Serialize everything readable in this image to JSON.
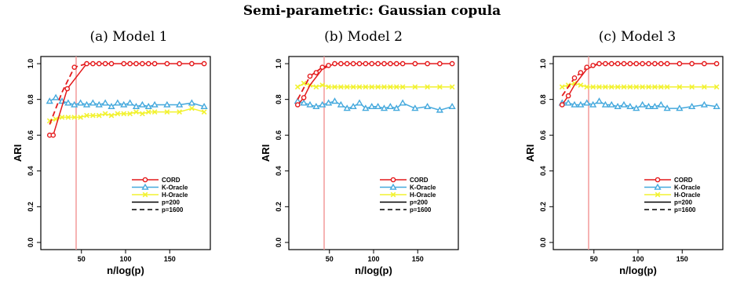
{
  "figure_title": "Semi-parametric: Gaussian copula",
  "colors": {
    "CORD": "#e41a1c",
    "K-Oracle": "#45a9dd",
    "H-Oracle": "#f2f230",
    "vline": "#f4a0a0"
  },
  "chart_data": [
    {
      "type": "line",
      "title": "(a) Model 1",
      "xlabel": "n/log(p)",
      "ylabel": "ARI",
      "xlim": [
        4,
        196
      ],
      "ylim": [
        -0.04,
        1.04
      ],
      "xticks": [
        50,
        100,
        150
      ],
      "yticks": [
        0.0,
        0.2,
        0.4,
        0.6,
        0.8,
        1.0
      ],
      "ytick_labels": [
        "0.0",
        "0.2",
        "0.4",
        "0.6",
        "0.8",
        "1.0"
      ],
      "vline_x": 44,
      "legend_position": "bottom-right",
      "legend": [
        "CORD",
        "K-Oracle",
        "H-Oracle",
        "p=200",
        "p=1600"
      ],
      "series": [
        {
          "name": "CORD",
          "style": "markers",
          "marker": "circle",
          "x": [
            14,
            18,
            34,
            42,
            56,
            63,
            70,
            77,
            84,
            98,
            105,
            112,
            119,
            126,
            133,
            147,
            161,
            175,
            189
          ],
          "y": [
            0.6,
            0.6,
            0.86,
            0.98,
            1.0,
            1.0,
            1.0,
            1.0,
            1.0,
            1.0,
            1.0,
            1.0,
            1.0,
            1.0,
            1.0,
            1.0,
            1.0,
            1.0,
            1.0
          ]
        },
        {
          "name": "p=200",
          "style": "solid",
          "color": "CORD",
          "x": [
            18,
            34,
            56,
            63,
            189
          ],
          "y": [
            0.6,
            0.86,
            1.0,
            1.0,
            1.0
          ]
        },
        {
          "name": "p=1600",
          "style": "dashed",
          "color": "CORD",
          "x": [
            14,
            28,
            42,
            56
          ],
          "y": [
            0.66,
            0.84,
            0.98,
            1.0
          ]
        },
        {
          "name": "K-Oracle",
          "style": "solid",
          "marker": "triangle",
          "x": [
            14,
            21,
            28,
            35,
            42,
            49,
            56,
            63,
            70,
            77,
            84,
            91,
            98,
            105,
            112,
            119,
            126,
            133,
            147,
            161,
            175,
            189
          ],
          "y": [
            0.79,
            0.81,
            0.79,
            0.78,
            0.77,
            0.78,
            0.77,
            0.78,
            0.77,
            0.78,
            0.76,
            0.78,
            0.77,
            0.78,
            0.76,
            0.77,
            0.76,
            0.77,
            0.77,
            0.77,
            0.78,
            0.76
          ]
        },
        {
          "name": "H-Oracle",
          "style": "solid",
          "marker": "x",
          "x": [
            14,
            21,
            28,
            35,
            42,
            49,
            56,
            63,
            70,
            77,
            84,
            91,
            98,
            105,
            112,
            119,
            126,
            133,
            147,
            161,
            175,
            189
          ],
          "y": [
            0.68,
            0.69,
            0.7,
            0.7,
            0.7,
            0.7,
            0.71,
            0.71,
            0.71,
            0.72,
            0.71,
            0.72,
            0.72,
            0.72,
            0.73,
            0.72,
            0.73,
            0.73,
            0.73,
            0.73,
            0.75,
            0.73
          ]
        }
      ]
    },
    {
      "type": "line",
      "title": "(b) Model 2",
      "xlabel": "n/log(p)",
      "ylabel": "ARI",
      "xlim": [
        4,
        196
      ],
      "ylim": [
        -0.04,
        1.04
      ],
      "xticks": [
        50,
        100,
        150
      ],
      "yticks": [
        0.0,
        0.2,
        0.4,
        0.6,
        0.8,
        1.0
      ],
      "ytick_labels": [
        "0.0",
        "0.2",
        "0.4",
        "0.6",
        "0.8",
        "1.0"
      ],
      "vline_x": 44,
      "legend_position": "bottom-right",
      "legend": [
        "CORD",
        "K-Oracle",
        "H-Oracle",
        "p=200",
        "p=1600"
      ],
      "series": [
        {
          "name": "CORD",
          "style": "markers",
          "marker": "circle",
          "x": [
            14,
            21,
            28,
            35,
            42,
            49,
            56,
            63,
            70,
            77,
            84,
            91,
            98,
            105,
            112,
            119,
            126,
            133,
            147,
            161,
            175,
            189
          ],
          "y": [
            0.77,
            0.81,
            0.93,
            0.95,
            0.98,
            0.99,
            1.0,
            1.0,
            1.0,
            1.0,
            1.0,
            1.0,
            1.0,
            1.0,
            1.0,
            1.0,
            1.0,
            1.0,
            1.0,
            1.0,
            1.0,
            1.0
          ]
        },
        {
          "name": "p=200",
          "style": "solid",
          "color": "CORD",
          "x": [
            14,
            21,
            28,
            42,
            56,
            189
          ],
          "y": [
            0.77,
            0.81,
            0.88,
            0.97,
            1.0,
            1.0
          ]
        },
        {
          "name": "p=1600",
          "style": "dashed",
          "color": "CORD",
          "x": [
            14,
            28,
            42,
            56
          ],
          "y": [
            0.8,
            0.93,
            0.98,
            1.0
          ]
        },
        {
          "name": "K-Oracle",
          "style": "solid",
          "marker": "triangle",
          "x": [
            14,
            21,
            28,
            35,
            42,
            49,
            56,
            63,
            70,
            77,
            84,
            91,
            98,
            105,
            112,
            119,
            126,
            133,
            147,
            161,
            175,
            189
          ],
          "y": [
            0.79,
            0.78,
            0.77,
            0.76,
            0.77,
            0.78,
            0.79,
            0.77,
            0.75,
            0.76,
            0.78,
            0.75,
            0.76,
            0.76,
            0.75,
            0.76,
            0.75,
            0.78,
            0.75,
            0.76,
            0.74,
            0.76
          ]
        },
        {
          "name": "H-Oracle",
          "style": "solid",
          "marker": "x",
          "x": [
            14,
            21,
            28,
            35,
            42,
            49,
            56,
            63,
            70,
            77,
            84,
            91,
            98,
            105,
            112,
            119,
            126,
            133,
            147,
            161,
            175,
            189
          ],
          "y": [
            0.87,
            0.89,
            0.88,
            0.87,
            0.88,
            0.87,
            0.87,
            0.87,
            0.87,
            0.87,
            0.87,
            0.87,
            0.87,
            0.87,
            0.87,
            0.87,
            0.87,
            0.87,
            0.87,
            0.87,
            0.87,
            0.87
          ]
        }
      ]
    },
    {
      "type": "line",
      "title": "(c) Model 3",
      "xlabel": "n/log(p)",
      "ylabel": "ARI",
      "xlim": [
        4,
        196
      ],
      "ylim": [
        -0.04,
        1.04
      ],
      "xticks": [
        50,
        100,
        150
      ],
      "yticks": [
        0.0,
        0.2,
        0.4,
        0.6,
        0.8,
        1.0
      ],
      "ytick_labels": [
        "0.0",
        "0.2",
        "0.4",
        "0.6",
        "0.8",
        "1.0"
      ],
      "vline_x": 44,
      "legend_position": "bottom-right",
      "legend": [
        "CORD",
        "K-Oracle",
        "H-Oracle",
        "p=200",
        "p=1600"
      ],
      "series": [
        {
          "name": "CORD",
          "style": "markers",
          "marker": "circle",
          "x": [
            14,
            21,
            28,
            35,
            42,
            49,
            56,
            63,
            70,
            77,
            84,
            91,
            98,
            105,
            112,
            119,
            126,
            133,
            147,
            161,
            175,
            189
          ],
          "y": [
            0.77,
            0.82,
            0.92,
            0.95,
            0.98,
            0.99,
            1.0,
            1.0,
            1.0,
            1.0,
            1.0,
            1.0,
            1.0,
            1.0,
            1.0,
            1.0,
            1.0,
            1.0,
            1.0,
            1.0,
            1.0,
            1.0
          ]
        },
        {
          "name": "p=200",
          "style": "solid",
          "color": "CORD",
          "x": [
            14,
            21,
            28,
            42,
            56,
            189
          ],
          "y": [
            0.77,
            0.82,
            0.88,
            0.97,
            1.0,
            1.0
          ]
        },
        {
          "name": "p=1600",
          "style": "dashed",
          "color": "CORD",
          "x": [
            14,
            28,
            42,
            56
          ],
          "y": [
            0.82,
            0.92,
            0.98,
            1.0
          ]
        },
        {
          "name": "K-Oracle",
          "style": "solid",
          "marker": "triangle",
          "x": [
            14,
            21,
            28,
            35,
            42,
            49,
            56,
            63,
            70,
            77,
            84,
            91,
            98,
            105,
            112,
            119,
            126,
            133,
            147,
            161,
            175,
            189
          ],
          "y": [
            0.78,
            0.78,
            0.77,
            0.77,
            0.78,
            0.77,
            0.79,
            0.77,
            0.77,
            0.76,
            0.77,
            0.76,
            0.75,
            0.77,
            0.76,
            0.76,
            0.77,
            0.75,
            0.75,
            0.76,
            0.77,
            0.76
          ]
        },
        {
          "name": "H-Oracle",
          "style": "solid",
          "marker": "x",
          "x": [
            14,
            21,
            28,
            35,
            42,
            49,
            56,
            63,
            70,
            77,
            84,
            91,
            98,
            105,
            112,
            119,
            126,
            133,
            147,
            161,
            175,
            189
          ],
          "y": [
            0.87,
            0.88,
            0.89,
            0.88,
            0.87,
            0.87,
            0.87,
            0.87,
            0.87,
            0.87,
            0.87,
            0.87,
            0.87,
            0.87,
            0.87,
            0.87,
            0.87,
            0.87,
            0.87,
            0.87,
            0.87,
            0.87
          ]
        }
      ]
    }
  ]
}
